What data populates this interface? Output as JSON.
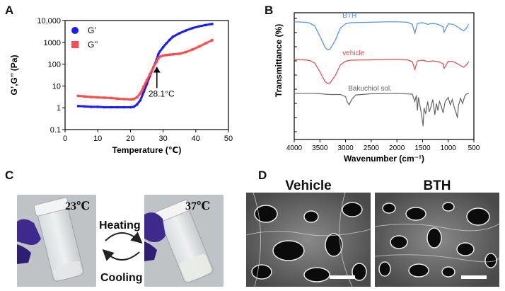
{
  "panels": {
    "a": "A",
    "b": "B",
    "c": "C",
    "d": "D"
  },
  "chart_data": [
    {
      "type": "line",
      "panel": "A",
      "xlabel": "Temperature (℃)",
      "ylabel": "G’,G’’ (Pa)",
      "xlim": [
        0,
        50
      ],
      "ylim": [
        0.1,
        10000
      ],
      "yscale": "log",
      "xticks": [
        "0",
        "10",
        "20",
        "30",
        "40",
        "50"
      ],
      "yticks": [
        "0.1",
        "1",
        "10",
        "100",
        "1000",
        "10,000"
      ],
      "legend_position": "top-left",
      "series": [
        {
          "name": "G’",
          "color": "#1a1aff",
          "marker": "circle",
          "x": [
            4,
            6,
            8,
            10,
            12,
            14,
            16,
            18,
            20,
            21,
            22,
            23,
            24,
            25,
            26,
            27,
            28,
            28.5,
            29,
            30,
            31,
            32,
            33,
            35,
            37,
            39,
            41,
            43,
            45
          ],
          "y": [
            1.2,
            1.15,
            1.1,
            1.1,
            1.05,
            1.05,
            1.05,
            1.05,
            1.05,
            1.1,
            1.4,
            2.2,
            5,
            12,
            30,
            70,
            160,
            280,
            380,
            600,
            900,
            1300,
            1800,
            2600,
            3500,
            4500,
            5400,
            6200,
            7000
          ]
        },
        {
          "name": "G’’",
          "color": "#ff4d4d",
          "marker": "square",
          "x": [
            4,
            6,
            8,
            10,
            12,
            14,
            16,
            18,
            20,
            21,
            22,
            23,
            24,
            25,
            26,
            27,
            28,
            28.5,
            29,
            30,
            31,
            32,
            33,
            35,
            37,
            39,
            41,
            43,
            45
          ],
          "y": [
            3.5,
            3.3,
            3.1,
            3.0,
            2.9,
            2.8,
            2.6,
            2.5,
            2.4,
            2.5,
            3.0,
            4.5,
            9,
            18,
            35,
            70,
            130,
            180,
            220,
            250,
            260,
            270,
            280,
            300,
            360,
            470,
            640,
            900,
            1250
          ]
        }
      ],
      "annotations": [
        {
          "text": "28.1°C",
          "x": 28.1
        }
      ]
    },
    {
      "type": "line",
      "panel": "B",
      "xlabel": "Wavenumber (cm⁻¹)",
      "ylabel": "Transmittance (%)",
      "xlim": [
        4000,
        500
      ],
      "xticks": [
        "4000",
        "3500",
        "3000",
        "2500",
        "2000",
        "1500",
        "1000",
        "500"
      ],
      "series": [
        {
          "name": "BTH",
          "color": "#4a90e2",
          "x": [
            4000,
            3800,
            3700,
            3600,
            3500,
            3400,
            3350,
            3300,
            3200,
            3100,
            3000,
            2900,
            2500,
            2200,
            2000,
            1800,
            1700,
            1650,
            1600,
            1500,
            1400,
            1300,
            1200,
            1100,
            1080,
            1050,
            1000,
            900,
            800,
            700,
            650,
            600
          ],
          "y": [
            90,
            89,
            87,
            80,
            55,
            28,
            22,
            24,
            45,
            75,
            85,
            88,
            89,
            90,
            90,
            89,
            84,
            62,
            86,
            88,
            84,
            86,
            84,
            78,
            65,
            72,
            85,
            84,
            76,
            68,
            74,
            84
          ]
        },
        {
          "name": "vehicle",
          "color": "#e24a4a",
          "x": [
            4000,
            3800,
            3700,
            3600,
            3500,
            3400,
            3350,
            3300,
            3200,
            3100,
            3000,
            2900,
            2500,
            2200,
            2000,
            1800,
            1700,
            1650,
            1600,
            1500,
            1400,
            1300,
            1200,
            1100,
            1080,
            1050,
            1000,
            900,
            800,
            700,
            650,
            600
          ],
          "y": [
            90,
            89,
            87,
            80,
            55,
            28,
            22,
            24,
            45,
            75,
            85,
            88,
            89,
            90,
            90,
            89,
            84,
            62,
            86,
            88,
            84,
            86,
            84,
            78,
            65,
            72,
            85,
            84,
            76,
            68,
            74,
            84
          ]
        },
        {
          "name": "Bakuchiol sol.",
          "color": "#666666",
          "x": [
            4000,
            3700,
            3500,
            3400,
            3300,
            3100,
            3000,
            2970,
            2930,
            2880,
            2800,
            2500,
            2000,
            1700,
            1650,
            1620,
            1600,
            1580,
            1550,
            1510,
            1490,
            1470,
            1440,
            1400,
            1370,
            1330,
            1300,
            1260,
            1230,
            1200,
            1170,
            1140,
            1100,
            1060,
            1000,
            960,
            920,
            880,
            840,
            820,
            800,
            760,
            720,
            680,
            650,
            600
          ],
          "y": [
            90,
            90,
            89,
            88,
            87,
            87,
            82,
            70,
            62,
            75,
            86,
            89,
            90,
            88,
            70,
            85,
            48,
            80,
            60,
            30,
            10,
            55,
            40,
            70,
            45,
            60,
            75,
            38,
            65,
            48,
            70,
            60,
            42,
            70,
            80,
            62,
            75,
            55,
            40,
            30,
            60,
            78,
            65,
            82,
            88,
            90
          ]
        }
      ]
    }
  ],
  "photos": {
    "left_temp": "23℃",
    "right_temp": "37℃",
    "heating": "Heating",
    "cooling": "Cooling"
  },
  "sem": {
    "left_title": "Vehicle",
    "right_title": "BTH"
  }
}
